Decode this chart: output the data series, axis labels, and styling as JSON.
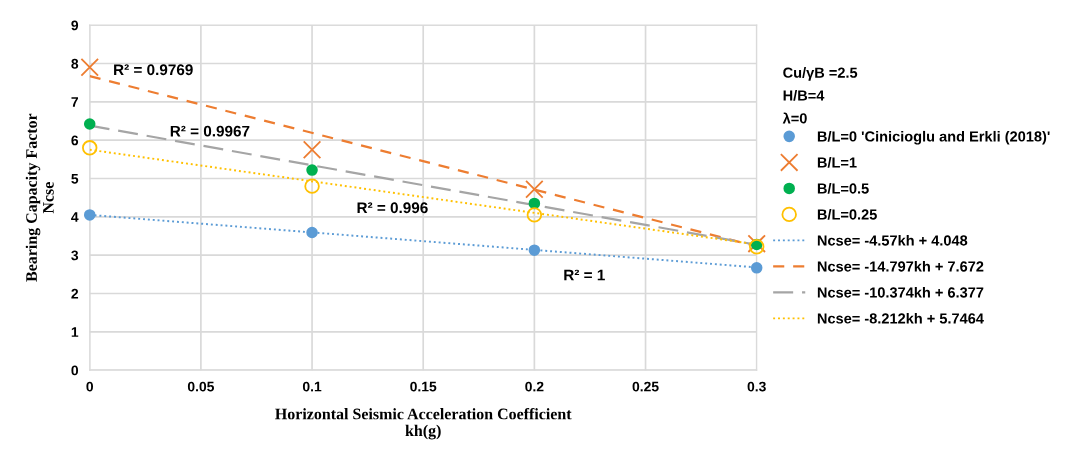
{
  "chart_data": {
    "type": "scatter",
    "xlabel": "Horizontal Seismic Acceleration Coefficient\nkh(g)",
    "ylabel": "Bearing Capacity Factor\nNcse",
    "xlim": [
      0,
      0.3
    ],
    "xticks": [
      0,
      0.05,
      0.1,
      0.15,
      0.2,
      0.25,
      0.3
    ],
    "ylim": [
      0,
      9
    ],
    "yticks": [
      0,
      1,
      2,
      3,
      4,
      5,
      6,
      7,
      8,
      9
    ],
    "grid": true,
    "legend": "right",
    "series": [
      {
        "name": "B/L=0 'Cinicioglu and Erkli (2018)'",
        "marker": "circle",
        "color": "#5b9bd5",
        "x": [
          0,
          0.1,
          0.2,
          0.3
        ],
        "values": [
          4.05,
          3.59,
          3.13,
          2.67
        ]
      },
      {
        "name": "B/L=1",
        "marker": "cross",
        "color": "#ed7d31",
        "x": [
          0,
          0.1,
          0.2,
          0.3
        ],
        "values": [
          7.9,
          5.75,
          4.72,
          3.3
        ]
      },
      {
        "name": "B/L=0.5",
        "marker": "circle",
        "color": "#00b050",
        "x": [
          0,
          0.1,
          0.2,
          0.3
        ],
        "values": [
          6.42,
          5.22,
          4.35,
          3.28
        ]
      },
      {
        "name": "B/L=0.25",
        "marker": "circle_open",
        "color": "#ffc000",
        "x": [
          0,
          0.1,
          0.2,
          0.3
        ],
        "values": [
          5.8,
          4.8,
          4.05,
          3.22
        ]
      },
      {
        "name": "Ncse= -4.57kh + 4.048",
        "type": "line",
        "line_style": "dotted",
        "color": "#5b9bd5",
        "x": [
          0,
          0.3
        ],
        "values": [
          4.05,
          2.68
        ]
      },
      {
        "name": "Ncse= -14.797kh + 7.672",
        "type": "line",
        "line_style": "dashed",
        "color": "#ed7d31",
        "x": [
          0,
          0.3
        ],
        "values": [
          7.67,
          3.23
        ]
      },
      {
        "name": "Ncse= -10.374kh + 6.377",
        "type": "line",
        "line_style": "longdash",
        "color": "#a5a5a5",
        "x": [
          0,
          0.3
        ],
        "values": [
          6.38,
          3.27
        ]
      },
      {
        "name": "Ncse= -8.212kh + 5.7464",
        "type": "line",
        "line_style": "dotted",
        "color": "#ffc000",
        "x": [
          0,
          0.3
        ],
        "values": [
          5.75,
          3.28
        ]
      }
    ],
    "annotations": [
      "R² = 0.9769",
      "R² = 0.9967",
      "R² = 0.996",
      "R² = 1",
      "Cu/γB =2.5",
      "H/B=4",
      "λ=0"
    ]
  }
}
